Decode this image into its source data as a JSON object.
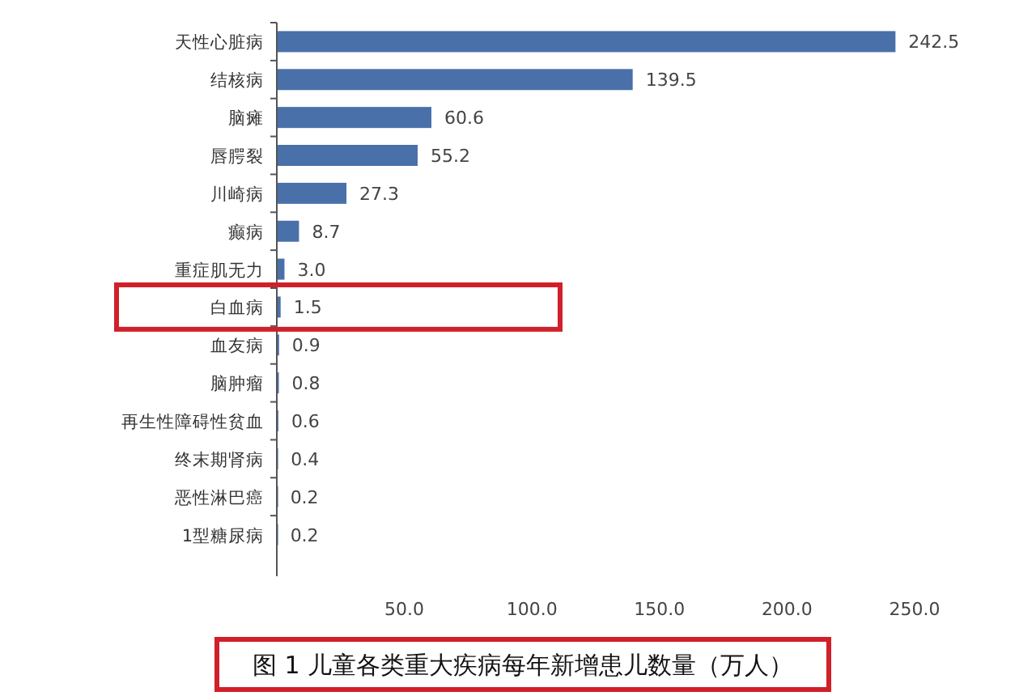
{
  "chart_data": {
    "type": "bar",
    "orientation": "horizontal",
    "title": "图 1  儿童各类重大疾病每年新增患儿数量（万人）",
    "categories": [
      "天性心脏病",
      "结核病",
      "脑瘫",
      "唇腭裂",
      "川崎病",
      "癫病",
      "重症肌无力",
      "白血病",
      "血友病",
      "脑肿瘤",
      "再生性障碍性贫血",
      "终末期肾病",
      "恶性淋巴癌",
      "1型糖尿病"
    ],
    "values": [
      242.5,
      139.5,
      60.6,
      55.2,
      27.3,
      8.7,
      3.0,
      1.5,
      0.9,
      0.8,
      0.6,
      0.4,
      0.2,
      0.2
    ],
    "value_labels": [
      "242.5",
      "139.5",
      "60.6",
      "55.2",
      "27.3",
      "8.7",
      "3.0",
      "1.5",
      "0.9",
      "0.8",
      "0.6",
      "0.4",
      "0.2",
      "0.2"
    ],
    "color": "#4a70aa",
    "xlim": [
      0,
      250
    ],
    "xticks": [
      {
        "value": 50,
        "label": "50.0"
      },
      {
        "value": 100,
        "label": "100.0"
      },
      {
        "value": 150,
        "label": "150.0"
      },
      {
        "value": 200,
        "label": "200.0"
      },
      {
        "value": 250,
        "label": "250.0"
      }
    ]
  }
}
